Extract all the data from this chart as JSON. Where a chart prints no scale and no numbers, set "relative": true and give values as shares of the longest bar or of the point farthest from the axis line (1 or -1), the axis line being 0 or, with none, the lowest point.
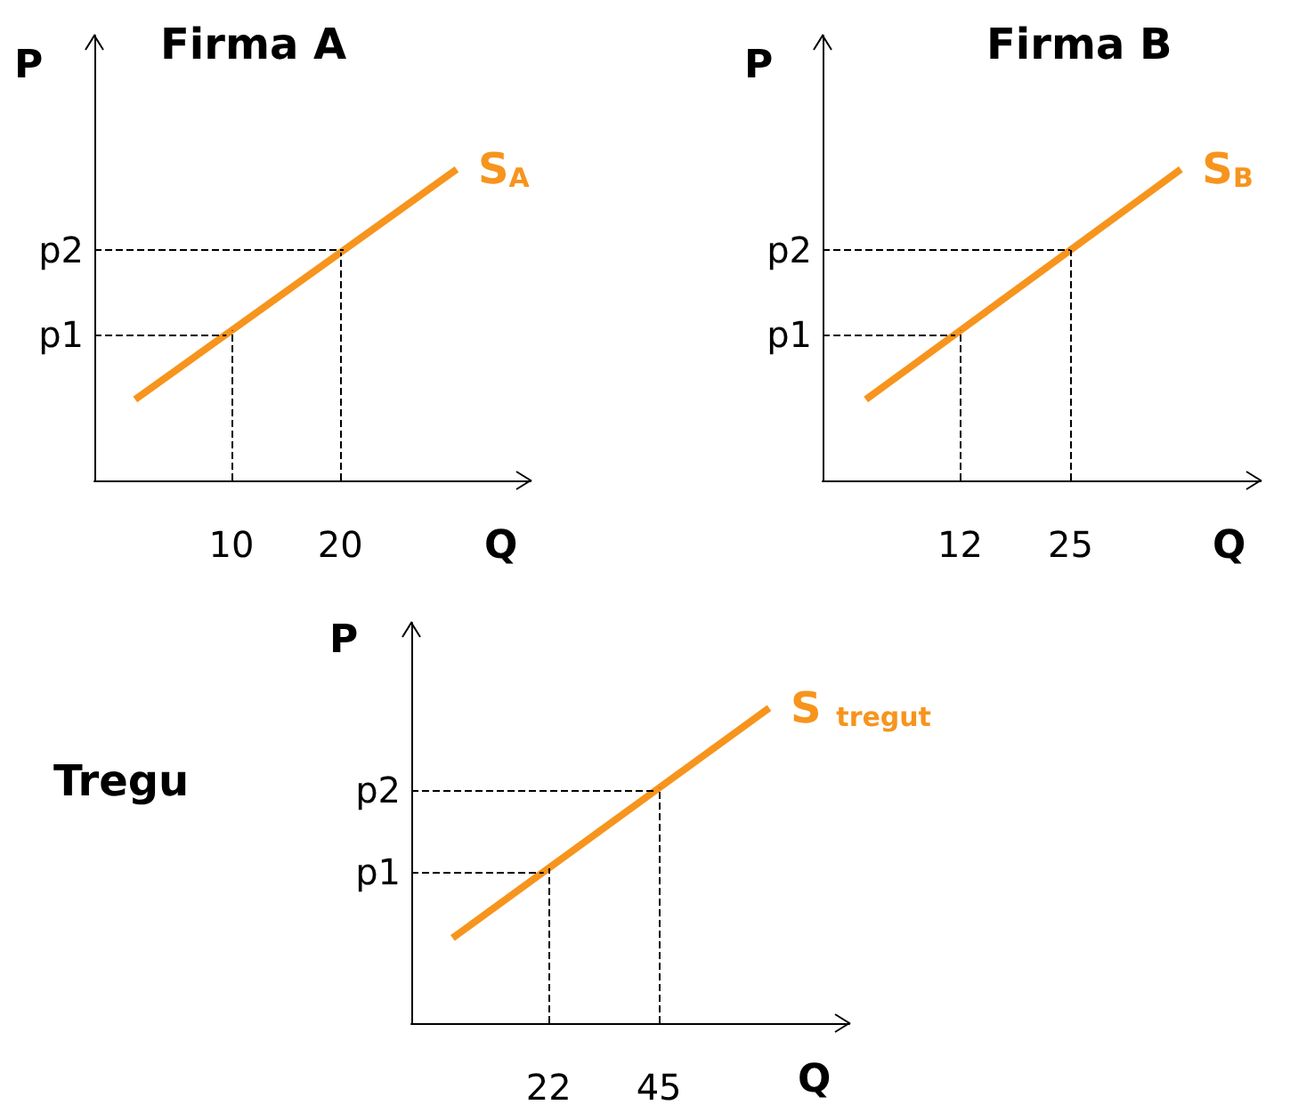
{
  "chart_data": [
    {
      "type": "line",
      "title": "Firma A",
      "xlabel": "Q",
      "ylabel": "P",
      "relative": true,
      "x": [
        1.15,
        30.7
      ],
      "xlim": [
        -2.6,
        37.5
      ],
      "xticks": [
        10,
        20
      ],
      "grid": false,
      "legend": false,
      "marker": "none",
      "line_style": "solid",
      "series": [
        {
          "name": "S$_{A}$",
          "color": "#f7941d",
          "values": [
            0.26,
            1
          ]
        }
      ],
      "ref_lines": [
        {
          "axis": "x",
          "value": 10,
          "line_style": "dashed"
        },
        {
          "axis": "x",
          "value": 20,
          "line_style": "dashed"
        },
        {
          "axis": "y",
          "value": 0.47,
          "label": "p1",
          "line_style": "dashed"
        },
        {
          "axis": "y",
          "value": 0.74,
          "label": "p2",
          "line_style": "dashed"
        }
      ]
    },
    {
      "type": "line",
      "title": "Firma B",
      "xlabel": "Q",
      "ylabel": "P",
      "relative": true,
      "x": [
        0.9,
        38
      ],
      "xlim": [
        -4.2,
        47.4
      ],
      "xticks": [
        12,
        25
      ],
      "grid": false,
      "legend": false,
      "marker": "none",
      "line_style": "solid",
      "series": [
        {
          "name": "S$_{B}$",
          "color": "#f7941d",
          "values": [
            0.26,
            1
          ]
        }
      ],
      "ref_lines": [
        {
          "axis": "x",
          "value": 12,
          "line_style": "dashed"
        },
        {
          "axis": "x",
          "value": 25,
          "line_style": "dashed"
        },
        {
          "axis": "y",
          "value": 0.47,
          "label": "p1",
          "line_style": "dashed"
        },
        {
          "axis": "y",
          "value": 0.74,
          "label": "p2",
          "line_style": "dashed"
        }
      ]
    },
    {
      "type": "line",
      "title": "Tregu",
      "xlabel": "Q",
      "ylabel": "P",
      "relative": true,
      "x": [
        2,
        68
      ],
      "xlim": [
        -6.6,
        84.7
      ],
      "xticks": [
        22,
        45
      ],
      "grid": false,
      "legend": false,
      "marker": "none",
      "line_style": "solid",
      "series": [
        {
          "name": "S $_{tregut}$",
          "color": "#f7941d",
          "values": [
            0.27,
            1
          ]
        }
      ],
      "ref_lines": [
        {
          "axis": "x",
          "value": 22,
          "line_style": "dashed"
        },
        {
          "axis": "x",
          "value": 45,
          "line_style": "dashed"
        },
        {
          "axis": "y",
          "value": 0.48,
          "label": "p1",
          "line_style": "dashed"
        },
        {
          "axis": "y",
          "value": 0.74,
          "label": "p2",
          "line_style": "dashed"
        }
      ]
    }
  ]
}
